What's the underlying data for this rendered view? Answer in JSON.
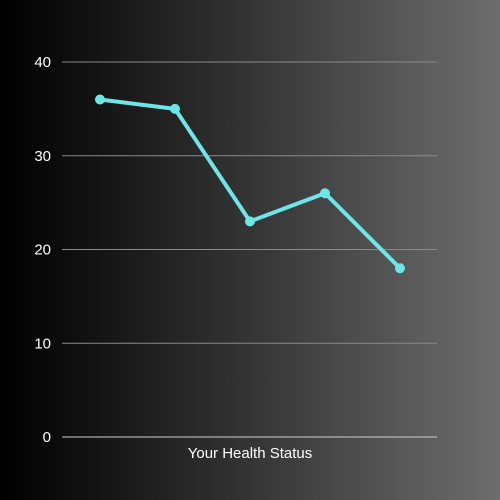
{
  "chart_data": {
    "type": "line",
    "xlabel": "Your Health Status",
    "ylabel": "",
    "ylim": [
      0,
      40
    ],
    "yticks": [
      0,
      10,
      20,
      30,
      40
    ],
    "grid": true,
    "x": [
      1,
      2,
      3,
      4,
      5
    ],
    "series": [
      {
        "values": [
          36,
          35,
          23,
          26,
          18
        ]
      }
    ],
    "colors": {
      "line": "#6ee6e8",
      "grid": "#8a8a8a",
      "text": "#ffffff"
    }
  }
}
